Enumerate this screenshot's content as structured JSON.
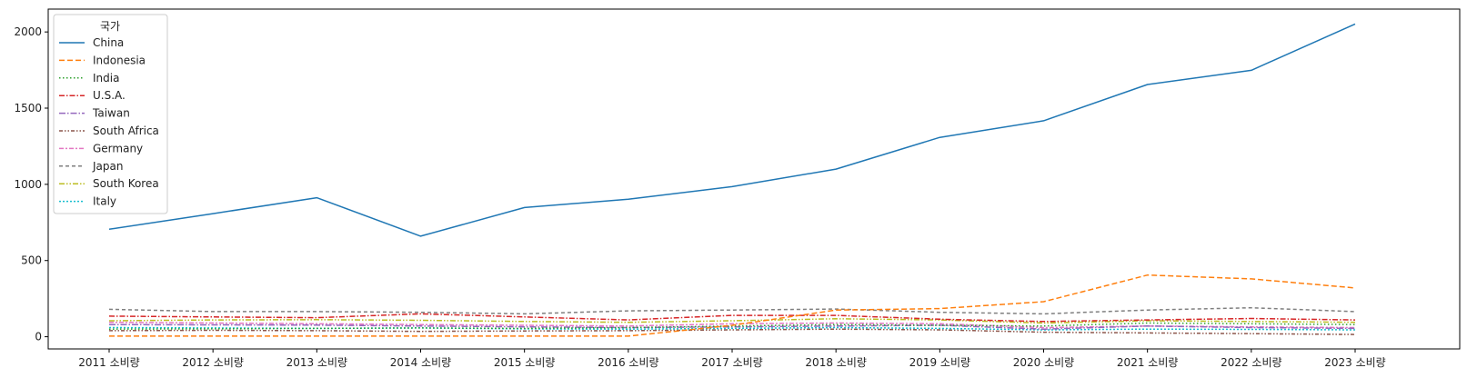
{
  "chart_data": {
    "type": "line",
    "x": [
      "2011 소비량",
      "2012 소비량",
      "2013 소비량",
      "2014 소비량",
      "2015 소비량",
      "2016 소비량",
      "2017 소비량",
      "2018 소비량",
      "2019 소비량",
      "2020 소비량",
      "2021 소비량",
      "2022 소비량",
      "2023 소비량"
    ],
    "yticks": [
      0,
      500,
      1000,
      1500,
      2000
    ],
    "ylim": [
      -80,
      2150
    ],
    "grid": false,
    "legend": {
      "title": "국가",
      "position": "top-left"
    },
    "series": [
      {
        "name": "China",
        "color": "#1f77b4",
        "dash": "solid",
        "values": [
          705,
          808,
          912,
          660,
          848,
          902,
          985,
          1100,
          1308,
          1417,
          1655,
          1748,
          2052
        ]
      },
      {
        "name": "Indonesia",
        "color": "#ff7f0e",
        "dash": "dashed",
        "values": [
          4,
          4,
          4,
          4,
          4,
          4,
          75,
          175,
          185,
          230,
          405,
          380,
          320
        ]
      },
      {
        "name": "India",
        "color": "#2ca02c",
        "dash": "dotted",
        "values": [
          50,
          52,
          55,
          58,
          55,
          60,
          70,
          80,
          75,
          70,
          90,
          85,
          80
        ]
      },
      {
        "name": "U.S.A.",
        "color": "#d62728",
        "dash": "dashdot",
        "values": [
          135,
          130,
          125,
          150,
          130,
          110,
          140,
          140,
          115,
          100,
          110,
          120,
          110
        ]
      },
      {
        "name": "Taiwan",
        "color": "#9467bd",
        "dash": "dashdot2",
        "values": [
          80,
          78,
          76,
          70,
          65,
          60,
          65,
          70,
          75,
          50,
          70,
          60,
          55
        ]
      },
      {
        "name": "South Africa",
        "color": "#8c564b",
        "dash": "dashdotdot",
        "values": [
          40,
          42,
          40,
          35,
          38,
          40,
          45,
          50,
          45,
          30,
          25,
          20,
          15
        ]
      },
      {
        "name": "Germany",
        "color": "#e377c2",
        "dash": "dashdot3",
        "values": [
          95,
          90,
          85,
          80,
          75,
          70,
          85,
          90,
          85,
          60,
          70,
          65,
          60
        ]
      },
      {
        "name": "Japan",
        "color": "#7f7f7f",
        "dash": "dashed2",
        "values": [
          180,
          165,
          165,
          160,
          150,
          170,
          175,
          182,
          160,
          150,
          175,
          190,
          165
        ]
      },
      {
        "name": "South Korea",
        "color": "#bcbd22",
        "dash": "dashdotdot2",
        "values": [
          105,
          110,
          112,
          108,
          100,
          95,
          105,
          118,
          110,
          90,
          105,
          100,
          95
        ]
      },
      {
        "name": "Italy",
        "color": "#17becf",
        "dash": "dotted2",
        "values": [
          60,
          58,
          55,
          58,
          52,
          50,
          55,
          60,
          55,
          45,
          50,
          48,
          45
        ]
      }
    ]
  }
}
